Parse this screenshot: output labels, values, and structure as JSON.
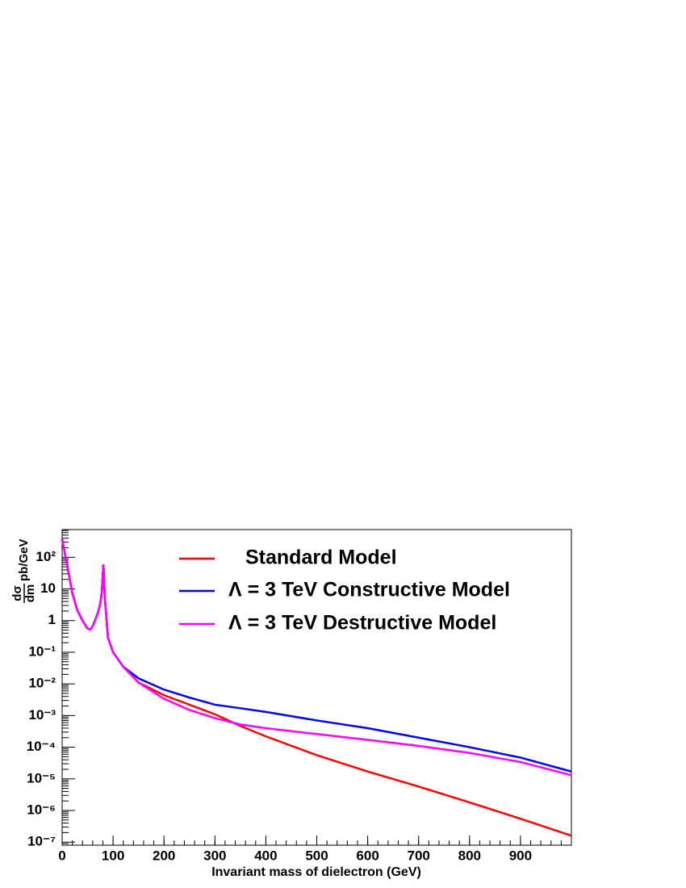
{
  "chart_data": {
    "type": "line",
    "x_label": "Invariant mass of dielectron (GeV)",
    "y_label": {
      "numerator": "dσ",
      "denominator": "dm",
      "unit": "pb/GeV"
    },
    "x": [
      0,
      10,
      20,
      30,
      40,
      50,
      55,
      60,
      70,
      75,
      78,
      81,
      84,
      90,
      100,
      120,
      150,
      200,
      250,
      300,
      350,
      400,
      500,
      600,
      700,
      800,
      900,
      1000
    ],
    "series": [
      {
        "name": "Standard Model",
        "color": "#ff0000",
        "values": [
          370,
          56,
          7.4,
          2.1,
          1,
          0.56,
          0.52,
          0.66,
          1.7,
          3.5,
          8,
          60,
          5,
          0.29,
          0.1,
          0.035,
          0.011,
          0.0044,
          0.0022,
          0.0011,
          0.00047,
          0.00022,
          5.6e-05,
          1.7e-05,
          5.7e-06,
          1.8e-06,
          5.5e-07,
          1.6e-07
        ]
      },
      {
        "name": "Λ = 3 TeV Constructive Model",
        "color": "#0000ff",
        "values": [
          370,
          56,
          7.4,
          2.1,
          1,
          0.56,
          0.52,
          0.66,
          1.7,
          3.5,
          8,
          60,
          5,
          0.29,
          0.1,
          0.035,
          0.015,
          0.0066,
          0.0037,
          0.0022,
          0.0017,
          0.0013,
          0.0007,
          0.0004,
          0.0002,
          0.0001,
          4.7e-05,
          1.7e-05
        ]
      },
      {
        "name": "Λ = 3 TeV Destructive Model",
        "color": "#ff00ff",
        "values": [
          370,
          56,
          7.4,
          2.1,
          1,
          0.56,
          0.52,
          0.66,
          1.7,
          3.5,
          8,
          60,
          5,
          0.29,
          0.1,
          0.035,
          0.011,
          0.0034,
          0.0015,
          0.00083,
          0.00052,
          0.0004,
          0.00026,
          0.00017,
          0.00011,
          6.6e-05,
          3.4e-05,
          1.3e-05
        ]
      }
    ],
    "xlim": [
      0,
      1000
    ],
    "xticks": [
      0,
      100,
      200,
      300,
      400,
      500,
      600,
      700,
      800,
      900
    ],
    "ylim": [
      8e-08,
      750
    ],
    "ylog": true,
    "yticks": [
      {
        "value": 1e-07,
        "label": "10⁻⁷"
      },
      {
        "value": 1e-06,
        "label": "10⁻⁶"
      },
      {
        "value": 1e-05,
        "label": "10⁻⁵"
      },
      {
        "value": 0.0001,
        "label": "10⁻⁴"
      },
      {
        "value": 0.001,
        "label": "10⁻³"
      },
      {
        "value": 0.01,
        "label": "10⁻²"
      },
      {
        "value": 0.1,
        "label": "10⁻¹"
      },
      1,
      10,
      {
        "value": 100,
        "label": "10²"
      }
    ],
    "grid": false
  }
}
